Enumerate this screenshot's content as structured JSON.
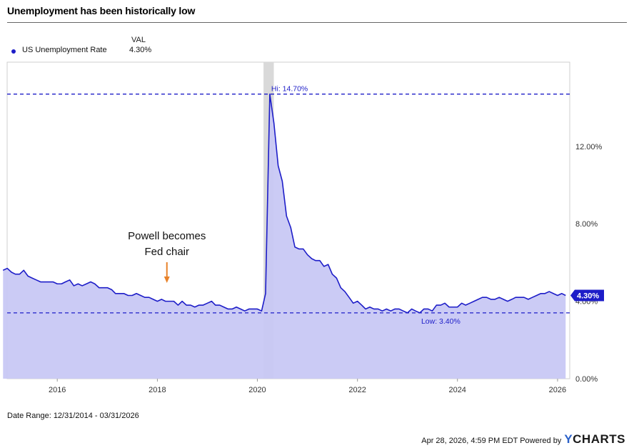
{
  "header": {
    "title": "Unemployment has been historically low"
  },
  "legend": {
    "column_header": "VAL",
    "series_name": "US Unemployment Rate",
    "series_value": "4.30%"
  },
  "footer": {
    "date_range": "Date Range: 12/31/2014 - 03/31/2026",
    "timestamp": "Apr 28, 2026, 4:59 PM EDT Powered by",
    "brand_mark": "Y",
    "brand_rest": "CHARTS"
  },
  "colors": {
    "series": "#1d1dc8",
    "fill": "#c8c8f4",
    "recession": "#d9d9d9",
    "annotation_arrow": "#e8822a"
  },
  "chart_data": {
    "type": "area",
    "title": "Unemployment has been historically low",
    "series": [
      {
        "name": "US Unemployment Rate",
        "points": [
          [
            "2014-12",
            5.6
          ],
          [
            "2015-01",
            5.7
          ],
          [
            "2015-02",
            5.5
          ],
          [
            "2015-03",
            5.4
          ],
          [
            "2015-04",
            5.4
          ],
          [
            "2015-05",
            5.6
          ],
          [
            "2015-06",
            5.3
          ],
          [
            "2015-07",
            5.2
          ],
          [
            "2015-08",
            5.1
          ],
          [
            "2015-09",
            5.0
          ],
          [
            "2015-10",
            5.0
          ],
          [
            "2015-11",
            5.0
          ],
          [
            "2015-12",
            5.0
          ],
          [
            "2016-01",
            4.9
          ],
          [
            "2016-02",
            4.9
          ],
          [
            "2016-03",
            5.0
          ],
          [
            "2016-04",
            5.1
          ],
          [
            "2016-05",
            4.8
          ],
          [
            "2016-06",
            4.9
          ],
          [
            "2016-07",
            4.8
          ],
          [
            "2016-08",
            4.9
          ],
          [
            "2016-09",
            5.0
          ],
          [
            "2016-10",
            4.9
          ],
          [
            "2016-11",
            4.7
          ],
          [
            "2016-12",
            4.7
          ],
          [
            "2017-01",
            4.7
          ],
          [
            "2017-02",
            4.6
          ],
          [
            "2017-03",
            4.4
          ],
          [
            "2017-04",
            4.4
          ],
          [
            "2017-05",
            4.4
          ],
          [
            "2017-06",
            4.3
          ],
          [
            "2017-07",
            4.3
          ],
          [
            "2017-08",
            4.4
          ],
          [
            "2017-09",
            4.3
          ],
          [
            "2017-10",
            4.2
          ],
          [
            "2017-11",
            4.2
          ],
          [
            "2017-12",
            4.1
          ],
          [
            "2018-01",
            4.0
          ],
          [
            "2018-02",
            4.1
          ],
          [
            "2018-03",
            4.0
          ],
          [
            "2018-04",
            4.0
          ],
          [
            "2018-05",
            4.0
          ],
          [
            "2018-06",
            3.8
          ],
          [
            "2018-07",
            4.0
          ],
          [
            "2018-08",
            3.8
          ],
          [
            "2018-09",
            3.8
          ],
          [
            "2018-10",
            3.7
          ],
          [
            "2018-11",
            3.8
          ],
          [
            "2018-12",
            3.8
          ],
          [
            "2019-01",
            3.9
          ],
          [
            "2019-02",
            4.0
          ],
          [
            "2019-03",
            3.8
          ],
          [
            "2019-04",
            3.8
          ],
          [
            "2019-05",
            3.7
          ],
          [
            "2019-06",
            3.6
          ],
          [
            "2019-07",
            3.6
          ],
          [
            "2019-08",
            3.7
          ],
          [
            "2019-09",
            3.6
          ],
          [
            "2019-10",
            3.5
          ],
          [
            "2019-11",
            3.6
          ],
          [
            "2019-12",
            3.6
          ],
          [
            "2020-01",
            3.6
          ],
          [
            "2020-02",
            3.5
          ],
          [
            "2020-03",
            4.4
          ],
          [
            "2020-04",
            14.7
          ],
          [
            "2020-05",
            13.2
          ],
          [
            "2020-06",
            11.0
          ],
          [
            "2020-07",
            10.2
          ],
          [
            "2020-08",
            8.4
          ],
          [
            "2020-09",
            7.8
          ],
          [
            "2020-10",
            6.8
          ],
          [
            "2020-11",
            6.7
          ],
          [
            "2020-12",
            6.7
          ],
          [
            "2021-01",
            6.4
          ],
          [
            "2021-02",
            6.2
          ],
          [
            "2021-03",
            6.1
          ],
          [
            "2021-04",
            6.1
          ],
          [
            "2021-05",
            5.8
          ],
          [
            "2021-06",
            5.9
          ],
          [
            "2021-07",
            5.4
          ],
          [
            "2021-08",
            5.2
          ],
          [
            "2021-09",
            4.7
          ],
          [
            "2021-10",
            4.5
          ],
          [
            "2021-11",
            4.2
          ],
          [
            "2021-12",
            3.9
          ],
          [
            "2022-01",
            4.0
          ],
          [
            "2022-02",
            3.8
          ],
          [
            "2022-03",
            3.6
          ],
          [
            "2022-04",
            3.7
          ],
          [
            "2022-05",
            3.6
          ],
          [
            "2022-06",
            3.6
          ],
          [
            "2022-07",
            3.5
          ],
          [
            "2022-08",
            3.6
          ],
          [
            "2022-09",
            3.5
          ],
          [
            "2022-10",
            3.6
          ],
          [
            "2022-11",
            3.6
          ],
          [
            "2022-12",
            3.5
          ],
          [
            "2023-01",
            3.4
          ],
          [
            "2023-02",
            3.6
          ],
          [
            "2023-03",
            3.5
          ],
          [
            "2023-04",
            3.4
          ],
          [
            "2023-05",
            3.6
          ],
          [
            "2023-06",
            3.6
          ],
          [
            "2023-07",
            3.5
          ],
          [
            "2023-08",
            3.8
          ],
          [
            "2023-09",
            3.8
          ],
          [
            "2023-10",
            3.9
          ],
          [
            "2023-11",
            3.7
          ],
          [
            "2023-12",
            3.7
          ],
          [
            "2024-01",
            3.7
          ],
          [
            "2024-02",
            3.9
          ],
          [
            "2024-03",
            3.8
          ],
          [
            "2024-04",
            3.9
          ],
          [
            "2024-05",
            4.0
          ],
          [
            "2024-06",
            4.1
          ],
          [
            "2024-07",
            4.2
          ],
          [
            "2024-08",
            4.2
          ],
          [
            "2024-09",
            4.1
          ],
          [
            "2024-10",
            4.1
          ],
          [
            "2024-11",
            4.2
          ],
          [
            "2024-12",
            4.1
          ],
          [
            "2025-01",
            4.0
          ],
          [
            "2025-02",
            4.1
          ],
          [
            "2025-03",
            4.2
          ],
          [
            "2025-04",
            4.2
          ],
          [
            "2025-05",
            4.2
          ],
          [
            "2025-06",
            4.1
          ],
          [
            "2025-07",
            4.2
          ],
          [
            "2025-08",
            4.3
          ],
          [
            "2025-09",
            4.4
          ],
          [
            "2025-10",
            4.4
          ],
          [
            "2025-11",
            4.5
          ],
          [
            "2025-12",
            4.4
          ],
          [
            "2026-01",
            4.3
          ],
          [
            "2026-02",
            4.4
          ],
          [
            "2026-03",
            4.3
          ]
        ]
      }
    ],
    "x_range": [
      "2014-12-31",
      "2026-03-31"
    ],
    "x_ticks": [
      {
        "date": "2016-01-01",
        "label": "2016"
      },
      {
        "date": "2018-01-01",
        "label": "2018"
      },
      {
        "date": "2020-01-01",
        "label": "2020"
      },
      {
        "date": "2022-01-01",
        "label": "2022"
      },
      {
        "date": "2024-01-01",
        "label": "2024"
      },
      {
        "date": "2026-01-01",
        "label": "2026"
      }
    ],
    "y_ticks": [
      {
        "value": 0,
        "label": "0.00%"
      },
      {
        "value": 4,
        "label": "4.00%"
      },
      {
        "value": 8,
        "label": "8.00%"
      },
      {
        "value": 12,
        "label": "12.00%"
      }
    ],
    "ylim": [
      0,
      16.35
    ],
    "y_axis_side": "right",
    "grid": false,
    "legend_position": "top-left",
    "recession_band": [
      "2020-02-15",
      "2020-04-30"
    ],
    "reference_lines": [
      {
        "value": 14.7,
        "label": "Hi: 14.70%",
        "date": "2020-04"
      },
      {
        "value": 3.4,
        "label": "Low: 3.40%",
        "date": "2023-04"
      }
    ],
    "last_value_label": "4.30%",
    "annotation": {
      "date": "2018-03",
      "lines": [
        "Powell becomes",
        "Fed chair"
      ]
    }
  }
}
